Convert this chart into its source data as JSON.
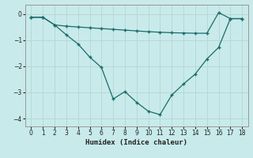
{
  "xlabel": "Humidex (Indice chaleur)",
  "background_color": "#c8eaea",
  "grid_color": "#b8d8d8",
  "line_color": "#1a6b6b",
  "xlim": [
    -0.5,
    18.5
  ],
  "ylim": [
    -4.3,
    0.35
  ],
  "xticks": [
    0,
    1,
    2,
    3,
    4,
    5,
    6,
    7,
    8,
    9,
    10,
    11,
    12,
    13,
    14,
    15,
    16,
    17,
    18
  ],
  "yticks": [
    0,
    -1,
    -2,
    -3,
    -4
  ],
  "series1_x": [
    0,
    1,
    2,
    3,
    4,
    5,
    6,
    7,
    8,
    9,
    10,
    11,
    12,
    13,
    14,
    15,
    16,
    17,
    18
  ],
  "series1_y": [
    -0.13,
    -0.13,
    -0.42,
    -0.47,
    -0.5,
    -0.53,
    -0.56,
    -0.59,
    -0.62,
    -0.65,
    -0.68,
    -0.7,
    -0.72,
    -0.73,
    -0.74,
    -0.74,
    0.05,
    -0.18,
    -0.18
  ],
  "series2_x": [
    0,
    1,
    2,
    3,
    4,
    5,
    6,
    7,
    8,
    9,
    10,
    11,
    12,
    13,
    14,
    15,
    16,
    17,
    18
  ],
  "series2_y": [
    -0.13,
    -0.13,
    -0.42,
    -0.8,
    -1.15,
    -1.65,
    -2.05,
    -3.25,
    -2.97,
    -3.38,
    -3.72,
    -3.85,
    -3.1,
    -2.68,
    -2.3,
    -1.72,
    -1.28,
    -0.18,
    -0.18
  ]
}
